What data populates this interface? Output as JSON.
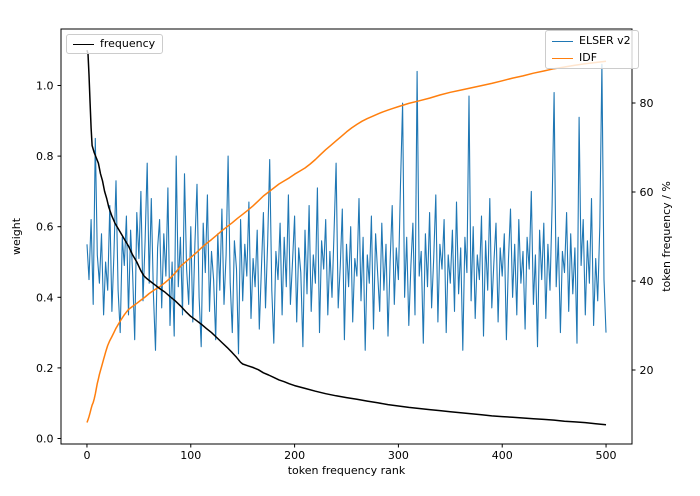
{
  "figure": {
    "background": "#ffffff"
  },
  "axes": {
    "x": {
      "label": "token frequency rank",
      "tick_labels": [
        "0",
        "100",
        "200",
        "300",
        "400",
        "500"
      ],
      "tick_values": [
        0,
        100,
        200,
        300,
        400,
        500
      ],
      "range": [
        -25,
        525
      ]
    },
    "y_left": {
      "label": "weight",
      "tick_labels": [
        "0.0",
        "0.2",
        "0.4",
        "0.6",
        "0.8",
        "1.0"
      ],
      "tick_values": [
        0.0,
        0.2,
        0.4,
        0.6,
        0.8,
        1.0
      ],
      "range": [
        -0.015,
        1.17
      ]
    },
    "y_right": {
      "label": "token frequency / %",
      "tick_labels": [
        "20",
        "40",
        "60",
        "80"
      ],
      "tick_values": [
        20,
        40,
        60,
        80
      ],
      "range": [
        3.5,
        96.5
      ]
    }
  },
  "legend_left": {
    "items": [
      {
        "label": "frequency",
        "color": "#000000"
      }
    ]
  },
  "legend_right": {
    "items": [
      {
        "label": "ELSER v2",
        "color": "#1f77b4"
      },
      {
        "label": "IDF",
        "color": "#ff7f0e"
      }
    ]
  },
  "colors": {
    "frequency": "#000000",
    "elser_v2": "#1f77b4",
    "idf": "#ff7f0e",
    "spine": "#000000",
    "text": "#000000"
  },
  "chart_data": {
    "type": "line",
    "title": "",
    "xlabel": "token frequency rank",
    "ylabel_left": "weight",
    "ylabel_right": "token frequency / %",
    "grid": false,
    "legend_positions": [
      "upper left: frequency",
      "upper right: ELSER v2, IDF"
    ],
    "x_range": [
      -25,
      525
    ],
    "y_left_range": [
      -0.015,
      1.17
    ],
    "y_right_range": [
      3.5,
      96.5
    ],
    "series": [
      {
        "name": "frequency",
        "axis": "left",
        "color": "#000000",
        "linewidth": 1.5,
        "points": [
          [
            0,
            1.1
          ],
          [
            1,
            1.09
          ],
          [
            2,
            1.03
          ],
          [
            3,
            0.95
          ],
          [
            4,
            0.88
          ],
          [
            5,
            0.83
          ],
          [
            7,
            0.81
          ],
          [
            9,
            0.795
          ],
          [
            11,
            0.78
          ],
          [
            13,
            0.75
          ],
          [
            15,
            0.73
          ],
          [
            17,
            0.7
          ],
          [
            19,
            0.68
          ],
          [
            21,
            0.655
          ],
          [
            24,
            0.63
          ],
          [
            27,
            0.61
          ],
          [
            30,
            0.595
          ],
          [
            33,
            0.58
          ],
          [
            36,
            0.565
          ],
          [
            40,
            0.545
          ],
          [
            44,
            0.52
          ],
          [
            48,
            0.5
          ],
          [
            52,
            0.475
          ],
          [
            55,
            0.46
          ],
          [
            58,
            0.452
          ],
          [
            62,
            0.443
          ],
          [
            66,
            0.434
          ],
          [
            70,
            0.425
          ],
          [
            75,
            0.415
          ],
          [
            80,
            0.402
          ],
          [
            85,
            0.39
          ],
          [
            90,
            0.376
          ],
          [
            95,
            0.36
          ],
          [
            100,
            0.346
          ],
          [
            105,
            0.335
          ],
          [
            110,
            0.324
          ],
          [
            115,
            0.312
          ],
          [
            120,
            0.3
          ],
          [
            125,
            0.286
          ],
          [
            130,
            0.272
          ],
          [
            135,
            0.258
          ],
          [
            140,
            0.243
          ],
          [
            144,
            0.23
          ],
          [
            148,
            0.216
          ],
          [
            150,
            0.211
          ],
          [
            155,
            0.206
          ],
          [
            160,
            0.201
          ],
          [
            165,
            0.195
          ],
          [
            170,
            0.186
          ],
          [
            175,
            0.18
          ],
          [
            180,
            0.173
          ],
          [
            185,
            0.166
          ],
          [
            190,
            0.161
          ],
          [
            195,
            0.155
          ],
          [
            200,
            0.15
          ],
          [
            210,
            0.142
          ],
          [
            220,
            0.134
          ],
          [
            230,
            0.127
          ],
          [
            240,
            0.121
          ],
          [
            250,
            0.116
          ],
          [
            260,
            0.111
          ],
          [
            270,
            0.106
          ],
          [
            280,
            0.101
          ],
          [
            290,
            0.096
          ],
          [
            300,
            0.092
          ],
          [
            310,
            0.088
          ],
          [
            320,
            0.085
          ],
          [
            330,
            0.082
          ],
          [
            340,
            0.079
          ],
          [
            350,
            0.076
          ],
          [
            360,
            0.073
          ],
          [
            370,
            0.07
          ],
          [
            380,
            0.067
          ],
          [
            390,
            0.064
          ],
          [
            400,
            0.062
          ],
          [
            410,
            0.06
          ],
          [
            420,
            0.058
          ],
          [
            430,
            0.056
          ],
          [
            440,
            0.054
          ],
          [
            450,
            0.052
          ],
          [
            460,
            0.049
          ],
          [
            470,
            0.047
          ],
          [
            480,
            0.045
          ],
          [
            490,
            0.042
          ],
          [
            500,
            0.039
          ]
        ]
      },
      {
        "name": "ELSER v2",
        "axis": "left",
        "color": "#1f77b4",
        "linewidth": 1.1,
        "x_start": 0,
        "x_step": 2,
        "values": [
          0.55,
          0.45,
          0.62,
          0.38,
          0.85,
          0.52,
          0.44,
          0.58,
          0.35,
          0.5,
          0.42,
          0.66,
          0.36,
          0.52,
          0.73,
          0.42,
          0.3,
          0.57,
          0.49,
          0.63,
          0.35,
          0.59,
          0.47,
          0.28,
          0.64,
          0.51,
          0.7,
          0.39,
          0.56,
          0.78,
          0.44,
          0.68,
          0.41,
          0.25,
          0.54,
          0.62,
          0.37,
          0.58,
          0.46,
          0.71,
          0.32,
          0.5,
          0.29,
          0.8,
          0.43,
          0.57,
          0.35,
          0.75,
          0.48,
          0.38,
          0.6,
          0.33,
          0.55,
          0.72,
          0.4,
          0.26,
          0.61,
          0.47,
          0.69,
          0.36,
          0.53,
          0.45,
          0.28,
          0.58,
          0.42,
          0.65,
          0.38,
          0.52,
          0.8,
          0.44,
          0.3,
          0.56,
          0.48,
          0.24,
          0.62,
          0.39,
          0.55,
          0.46,
          0.67,
          0.34,
          0.51,
          0.43,
          0.59,
          0.31,
          0.48,
          0.64,
          0.37,
          0.55,
          0.79,
          0.42,
          0.27,
          0.53,
          0.45,
          0.61,
          0.35,
          0.57,
          0.43,
          0.69,
          0.38,
          0.5,
          0.63,
          0.33,
          0.54,
          0.47,
          0.26,
          0.59,
          0.41,
          0.66,
          0.36,
          0.52,
          0.44,
          0.71,
          0.3,
          0.56,
          0.48,
          0.62,
          0.35,
          0.53,
          0.4,
          0.58,
          0.78,
          0.37,
          0.49,
          0.65,
          0.28,
          0.55,
          0.43,
          0.6,
          0.33,
          0.51,
          0.46,
          0.68,
          0.39,
          0.57,
          0.25,
          0.52,
          0.44,
          0.63,
          0.31,
          0.58,
          0.47,
          0.36,
          0.61,
          0.42,
          0.55,
          0.29,
          0.5,
          0.66,
          0.38,
          0.54,
          0.45,
          0.72,
          0.95,
          0.4,
          0.57,
          0.32,
          0.49,
          0.61,
          0.35,
          1.04,
          0.46,
          0.53,
          0.27,
          0.58,
          0.43,
          0.64,
          0.37,
          0.51,
          0.69,
          0.33,
          0.55,
          0.48,
          0.62,
          0.3,
          0.52,
          0.44,
          0.59,
          0.36,
          0.67,
          0.41,
          0.54,
          0.25,
          0.57,
          0.47,
          0.97,
          0.39,
          0.6,
          0.34,
          0.52,
          0.45,
          0.63,
          0.29,
          0.56,
          0.42,
          0.68,
          0.37,
          0.5,
          0.61,
          0.33,
          0.54,
          0.46,
          0.58,
          0.28,
          0.51,
          0.65,
          0.4,
          0.55,
          0.35,
          0.62,
          0.44,
          0.53,
          0.31,
          0.57,
          0.48,
          0.7,
          0.38,
          0.52,
          0.26,
          0.59,
          0.45,
          0.61,
          0.34,
          0.55,
          0.42,
          0.66,
          0.98,
          0.43,
          0.57,
          0.3,
          0.53,
          0.47,
          0.64,
          0.36,
          0.58,
          0.41,
          0.54,
          0.27,
          0.91,
          0.49,
          0.62,
          0.35,
          0.56,
          0.44,
          0.68,
          0.32,
          0.51,
          0.39,
          0.6,
          1.06,
          0.45,
          0.3
        ]
      },
      {
        "name": "IDF",
        "axis": "right",
        "color": "#ff7f0e",
        "linewidth": 1.5,
        "points": [
          [
            0,
            8.2
          ],
          [
            1,
            8.8
          ],
          [
            2,
            9.5
          ],
          [
            3,
            10.4
          ],
          [
            4,
            11.3
          ],
          [
            5,
            12.1
          ],
          [
            6,
            12.7
          ],
          [
            7,
            13.5
          ],
          [
            8,
            14.6
          ],
          [
            9,
            15.8
          ],
          [
            10,
            17.0
          ],
          [
            11,
            18.0
          ],
          [
            12,
            19.0
          ],
          [
            13,
            19.9
          ],
          [
            14,
            20.7
          ],
          [
            15,
            21.5
          ],
          [
            16,
            22.4
          ],
          [
            17,
            23.2
          ],
          [
            18,
            24.0
          ],
          [
            19,
            24.8
          ],
          [
            20,
            25.5
          ],
          [
            22,
            26.6
          ],
          [
            24,
            27.5
          ],
          [
            26,
            28.4
          ],
          [
            28,
            29.4
          ],
          [
            30,
            30.2
          ],
          [
            32,
            31.0
          ],
          [
            34,
            31.7
          ],
          [
            36,
            32.4
          ],
          [
            38,
            33.0
          ],
          [
            40,
            33.6
          ],
          [
            44,
            34.3
          ],
          [
            48,
            35.0
          ],
          [
            52,
            35.7
          ],
          [
            56,
            36.4
          ],
          [
            60,
            37.2
          ],
          [
            65,
            38.0
          ],
          [
            70,
            38.7
          ],
          [
            75,
            39.6
          ],
          [
            80,
            40.6
          ],
          [
            85,
            41.8
          ],
          [
            90,
            43.3
          ],
          [
            95,
            44.3
          ],
          [
            100,
            45.3
          ],
          [
            105,
            46.3
          ],
          [
            110,
            47.4
          ],
          [
            115,
            48.4
          ],
          [
            120,
            49.3
          ],
          [
            125,
            50.3
          ],
          [
            130,
            51.3
          ],
          [
            135,
            52.2
          ],
          [
            140,
            53.1
          ],
          [
            145,
            54.1
          ],
          [
            150,
            55.0
          ],
          [
            155,
            55.9
          ],
          [
            160,
            56.9
          ],
          [
            165,
            58.0
          ],
          [
            170,
            59.1
          ],
          [
            175,
            60.0
          ],
          [
            180,
            60.9
          ],
          [
            185,
            61.8
          ],
          [
            190,
            62.5
          ],
          [
            195,
            63.2
          ],
          [
            200,
            64.0
          ],
          [
            205,
            64.7
          ],
          [
            210,
            65.4
          ],
          [
            215,
            66.3
          ],
          [
            220,
            67.3
          ],
          [
            225,
            68.4
          ],
          [
            230,
            69.5
          ],
          [
            235,
            70.5
          ],
          [
            240,
            71.5
          ],
          [
            245,
            72.5
          ],
          [
            250,
            73.5
          ],
          [
            255,
            74.4
          ],
          [
            260,
            75.2
          ],
          [
            265,
            75.9
          ],
          [
            270,
            76.5
          ],
          [
            275,
            77.0
          ],
          [
            280,
            77.5
          ],
          [
            285,
            78.0
          ],
          [
            290,
            78.4
          ],
          [
            295,
            78.8
          ],
          [
            300,
            79.2
          ],
          [
            310,
            79.9
          ],
          [
            320,
            80.5
          ],
          [
            330,
            81.1
          ],
          [
            340,
            81.8
          ],
          [
            350,
            82.4
          ],
          [
            360,
            82.9
          ],
          [
            370,
            83.4
          ],
          [
            380,
            83.9
          ],
          [
            390,
            84.4
          ],
          [
            400,
            85.0
          ],
          [
            410,
            85.6
          ],
          [
            420,
            86.1
          ],
          [
            430,
            86.7
          ],
          [
            440,
            87.2
          ],
          [
            450,
            87.7
          ],
          [
            460,
            88.1
          ],
          [
            470,
            88.5
          ],
          [
            480,
            88.8
          ],
          [
            490,
            89.1
          ],
          [
            500,
            89.4
          ]
        ]
      }
    ]
  }
}
